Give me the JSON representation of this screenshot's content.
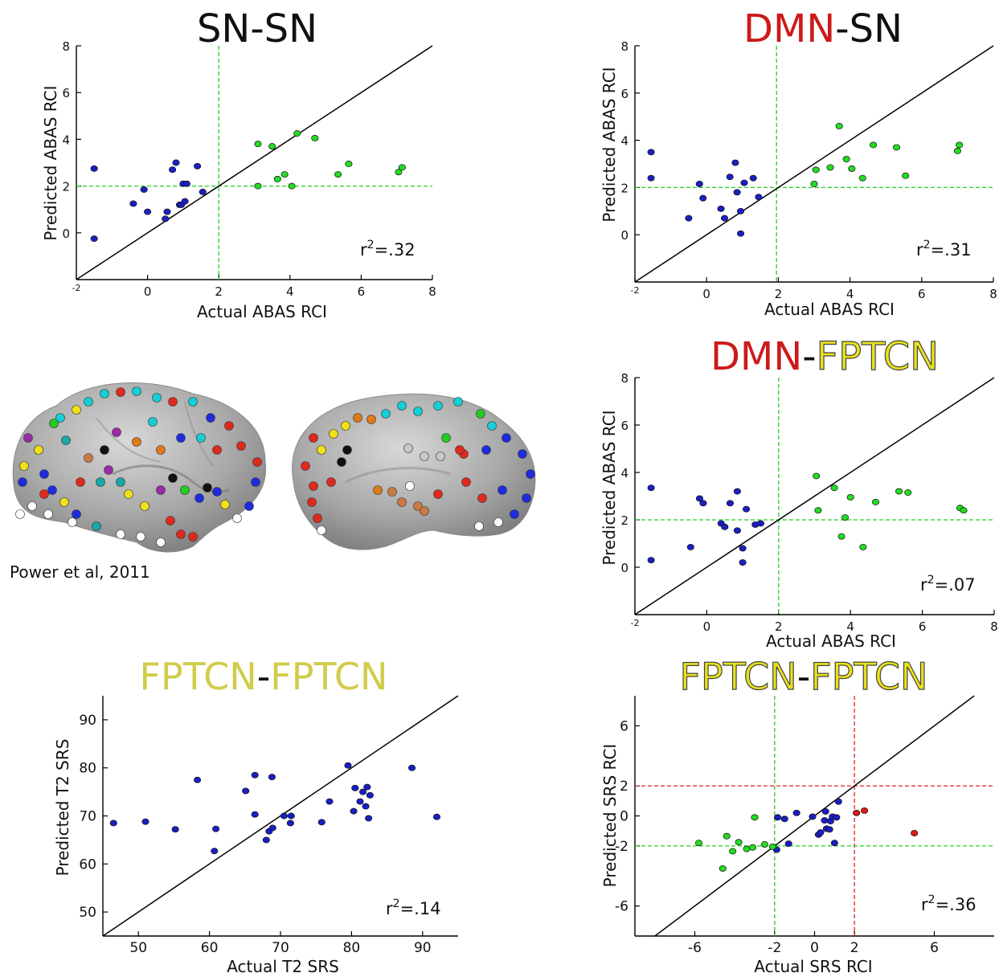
{
  "colors": {
    "dmn": "#cc1a1a",
    "fptcn": "#e9e21a",
    "sn": "#111111",
    "blue_point": "#1a1fc4",
    "green_point": "#22dd22",
    "red_point": "#e01a1a",
    "green_line": "#22cc22",
    "red_line": "#e02020"
  },
  "brain": {
    "caption": "Power et al, 2011",
    "description_icon": "brain-network-icon"
  },
  "chart_data": [
    {
      "id": "sn-sn",
      "type": "scatter",
      "title": [
        {
          "text": "SN",
          "role": "sn"
        },
        {
          "text": "-",
          "role": "sep"
        },
        {
          "text": "SN",
          "role": "sn"
        }
      ],
      "xlabel": "Actual ABAS RCI",
      "ylabel": "Predicted ABAS RCI",
      "xlim": [
        -2,
        8
      ],
      "ylim": [
        -2,
        8
      ],
      "xticks": [
        -2,
        0,
        2,
        4,
        6,
        8
      ],
      "yticks": [
        0,
        2,
        4,
        6,
        8
      ],
      "r2": "=.32",
      "identity_line": true,
      "vlines": [
        {
          "x": 2,
          "color": "green"
        }
      ],
      "hlines": [
        {
          "y": 2,
          "color": "green"
        }
      ],
      "series": [
        {
          "color": "blue",
          "x": [
            -1.5,
            -1.5,
            -0.4,
            -0.1,
            0.0,
            0.5,
            0.55,
            0.7,
            0.8,
            0.9,
            0.95,
            1.05,
            1.0,
            1.1,
            1.4,
            1.55
          ],
          "y": [
            2.75,
            -0.25,
            1.25,
            1.85,
            0.9,
            0.6,
            0.9,
            2.7,
            3.0,
            1.2,
            1.2,
            1.35,
            2.1,
            2.1,
            2.85,
            1.75
          ]
        },
        {
          "color": "green",
          "x": [
            3.1,
            3.1,
            3.5,
            3.65,
            3.85,
            4.05,
            4.2,
            4.7,
            5.35,
            5.65,
            7.05,
            7.15
          ],
          "y": [
            3.8,
            2.0,
            3.7,
            2.3,
            2.5,
            2.0,
            4.25,
            4.05,
            2.5,
            2.95,
            2.6,
            2.8
          ]
        }
      ]
    },
    {
      "id": "dmn-sn",
      "type": "scatter",
      "title": [
        {
          "text": "DMN",
          "role": "dmn"
        },
        {
          "text": "-",
          "role": "sep"
        },
        {
          "text": "SN",
          "role": "sn"
        }
      ],
      "xlabel": "Actual ABAS RCI",
      "ylabel": "Predicted ABAS RCI",
      "xlim": [
        -2,
        8
      ],
      "ylim": [
        -2,
        8
      ],
      "xticks": [
        -2,
        0,
        2,
        4,
        6,
        8
      ],
      "yticks": [
        0,
        2,
        4,
        6,
        8
      ],
      "r2": "=.31",
      "identity_line": true,
      "vlines": [
        {
          "x": 1.95,
          "color": "green"
        }
      ],
      "hlines": [
        {
          "y": 2,
          "color": "green"
        }
      ],
      "series": [
        {
          "color": "blue",
          "x": [
            -1.55,
            -1.55,
            -0.5,
            -0.2,
            -0.1,
            0.4,
            0.5,
            0.65,
            0.8,
            0.85,
            0.95,
            0.95,
            1.05,
            1.3,
            1.45
          ],
          "y": [
            3.5,
            2.4,
            0.7,
            2.15,
            1.55,
            1.1,
            0.7,
            2.45,
            3.05,
            1.8,
            1.0,
            0.05,
            2.2,
            2.4,
            1.6
          ]
        },
        {
          "color": "green",
          "x": [
            3.0,
            3.05,
            3.45,
            3.7,
            3.9,
            4.05,
            4.35,
            4.65,
            5.3,
            5.55,
            7.0,
            7.05
          ],
          "y": [
            2.15,
            2.75,
            2.85,
            4.6,
            3.2,
            2.8,
            2.4,
            3.8,
            3.7,
            2.5,
            3.55,
            3.8
          ]
        }
      ]
    },
    {
      "id": "dmn-fptcn",
      "type": "scatter",
      "title": [
        {
          "text": "DMN",
          "role": "dmn"
        },
        {
          "text": "-",
          "role": "sep"
        },
        {
          "text": "FPTCN",
          "role": "fptcn"
        }
      ],
      "xlabel": "Actual ABAS RCI",
      "ylabel": "Predicted ABAS RCI",
      "xlim": [
        -2,
        8
      ],
      "ylim": [
        -2,
        8
      ],
      "xticks": [
        -2,
        0,
        2,
        4,
        6,
        8
      ],
      "yticks": [
        0,
        2,
        4,
        6,
        8
      ],
      "r2": "=.07",
      "identity_line": true,
      "vlines": [
        {
          "x": 2,
          "color": "green"
        }
      ],
      "hlines": [
        {
          "y": 2,
          "color": "green"
        }
      ],
      "series": [
        {
          "color": "blue",
          "x": [
            -1.55,
            -1.55,
            -0.45,
            -0.2,
            -0.1,
            0.4,
            0.5,
            0.65,
            0.85,
            0.85,
            1.0,
            1.0,
            1.1,
            1.35,
            1.5
          ],
          "y": [
            3.35,
            0.3,
            0.85,
            2.9,
            2.7,
            1.85,
            1.7,
            2.7,
            3.2,
            1.55,
            0.8,
            0.2,
            2.45,
            1.8,
            1.85
          ]
        },
        {
          "color": "green",
          "x": [
            3.05,
            3.1,
            3.55,
            3.75,
            3.85,
            4.0,
            4.35,
            4.7,
            5.35,
            5.6,
            7.05,
            7.15
          ],
          "y": [
            3.85,
            2.4,
            3.35,
            1.3,
            2.1,
            2.95,
            0.85,
            2.75,
            3.2,
            3.15,
            2.5,
            2.4
          ]
        }
      ]
    },
    {
      "id": "fptcn-fptcn-srs",
      "type": "scatter",
      "title": [
        {
          "text": "FPTCN",
          "role": "fptcn"
        },
        {
          "text": "-",
          "role": "sep"
        },
        {
          "text": "FPTCN",
          "role": "fptcn"
        }
      ],
      "title_style": "faded",
      "xlabel": "Actual T2 SRS",
      "ylabel": "Predicted T2 SRS",
      "xlim": [
        45,
        95
      ],
      "ylim": [
        45,
        95
      ],
      "xticks": [
        50,
        60,
        70,
        80,
        90
      ],
      "yticks": [
        50,
        60,
        70,
        80,
        90
      ],
      "r2": "=.14",
      "identity_line": true,
      "vlines": [],
      "hlines": [],
      "series": [
        {
          "color": "blue",
          "x": [
            46.5,
            51.0,
            55.2,
            58.3,
            60.7,
            60.9,
            65.1,
            66.4,
            66.4,
            68.0,
            68.4,
            68.8,
            68.9,
            70.5,
            71.4,
            71.5,
            75.8,
            76.9,
            79.5,
            80.3,
            80.5,
            81.2,
            81.6,
            82.0,
            82.2,
            82.4,
            82.6,
            88.5,
            92.0
          ],
          "y": [
            68.5,
            68.8,
            67.2,
            77.5,
            62.7,
            67.3,
            75.2,
            78.5,
            70.3,
            65.0,
            66.8,
            78.1,
            67.5,
            70.0,
            68.5,
            70.0,
            68.7,
            73.0,
            80.5,
            71.0,
            75.8,
            73.0,
            75.0,
            72.0,
            76.0,
            69.5,
            74.3,
            80.0,
            69.8
          ]
        }
      ]
    },
    {
      "id": "fptcn-fptcn-rci",
      "type": "scatter",
      "title": [
        {
          "text": "FPTCN",
          "role": "fptcn"
        },
        {
          "text": "-",
          "role": "sep"
        },
        {
          "text": "FPTCN",
          "role": "fptcn"
        }
      ],
      "xlabel": "Actual SRS RCI",
      "ylabel": "Predicted SRS RCI",
      "xlim": [
        -9,
        9
      ],
      "ylim": [
        -8,
        8
      ],
      "xticks": [
        -6,
        -2,
        0,
        2,
        6
      ],
      "yticks": [
        -6,
        -2,
        0,
        2,
        6
      ],
      "r2": "=.36",
      "identity_line": true,
      "vlines": [
        {
          "x": -2,
          "color": "green"
        },
        {
          "x": 2,
          "color": "red"
        }
      ],
      "hlines": [
        {
          "y": 2,
          "color": "red"
        },
        {
          "y": -2,
          "color": "green"
        }
      ],
      "series": [
        {
          "color": "blue",
          "x": [
            -1.9,
            -1.85,
            -1.5,
            -1.3,
            -0.9,
            -0.1,
            0.2,
            0.3,
            0.5,
            0.55,
            0.6,
            0.75,
            0.8,
            0.9,
            1.0,
            1.1,
            1.2
          ],
          "y": [
            -2.25,
            -0.1,
            -0.2,
            -1.85,
            0.2,
            -0.05,
            -1.25,
            -1.1,
            -0.3,
            0.3,
            -0.85,
            -0.9,
            -0.35,
            -0.05,
            -1.8,
            -0.1,
            0.95
          ]
        },
        {
          "color": "green",
          "x": [
            -5.8,
            -4.6,
            -4.4,
            -4.1,
            -3.8,
            -3.4,
            -3.1,
            -3.0,
            -2.5,
            -2.1
          ],
          "y": [
            -1.8,
            -3.5,
            -1.35,
            -2.35,
            -1.75,
            -2.2,
            -2.1,
            -0.1,
            -1.9,
            -2.05
          ]
        },
        {
          "color": "red",
          "x": [
            2.1,
            2.5,
            5.0
          ],
          "y": [
            0.2,
            0.35,
            -1.15
          ]
        }
      ]
    }
  ]
}
